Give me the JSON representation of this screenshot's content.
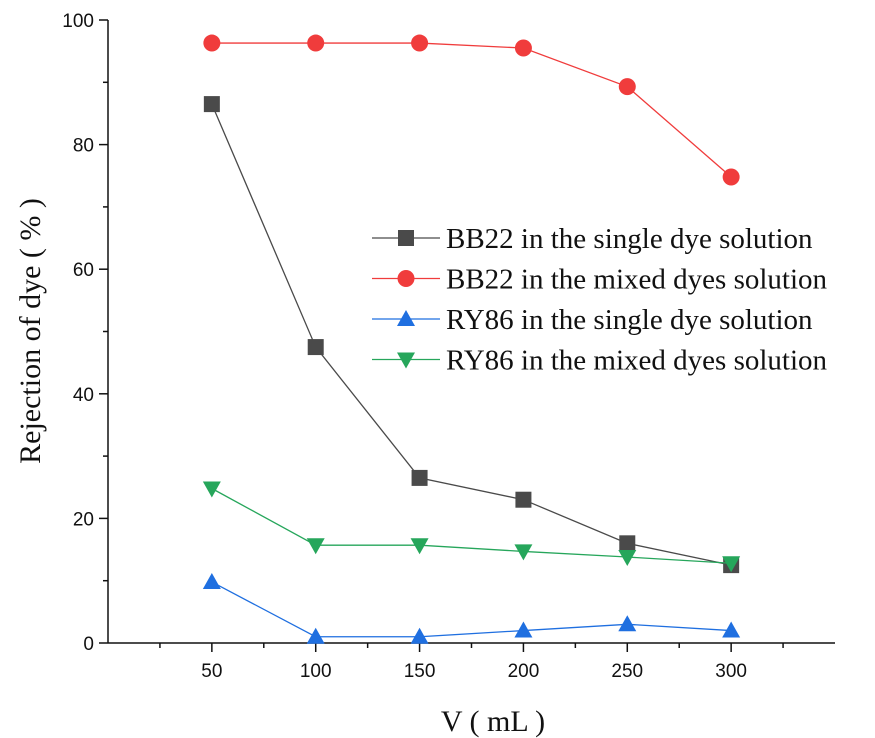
{
  "chart_data": {
    "type": "line",
    "title": "",
    "xlabel": "V ( mL )",
    "ylabel": "Rejection of dye ( % )",
    "xlim": [
      0,
      350
    ],
    "ylim": [
      0,
      100
    ],
    "x_ticks": [
      50,
      100,
      150,
      200,
      250,
      300
    ],
    "y_ticks": [
      0,
      20,
      40,
      60,
      80,
      100
    ],
    "grid": false,
    "legend_position": "center-right",
    "x": [
      50,
      100,
      150,
      200,
      250,
      300
    ],
    "series": [
      {
        "name": "BB22 in the single dye solution",
        "marker": "square",
        "color": "#4a4a4a",
        "values": [
          86.5,
          47.5,
          26.5,
          23,
          16,
          12.5
        ]
      },
      {
        "name": "BB22 in the mixed dyes solution",
        "marker": "circle",
        "color": "#f03c3c",
        "values": [
          96.3,
          96.3,
          96.3,
          95.5,
          89.3,
          74.8
        ]
      },
      {
        "name": "RY86 in the single dye solution",
        "marker": "triangle-up",
        "color": "#1f6fe0",
        "values": [
          9.8,
          1,
          1,
          2,
          3,
          2
        ]
      },
      {
        "name": "RY86 in the mixed dyes solution",
        "marker": "triangle-down",
        "color": "#26a65b",
        "values": [
          24.8,
          15.7,
          15.7,
          14.7,
          13.8,
          12.8
        ]
      }
    ]
  }
}
